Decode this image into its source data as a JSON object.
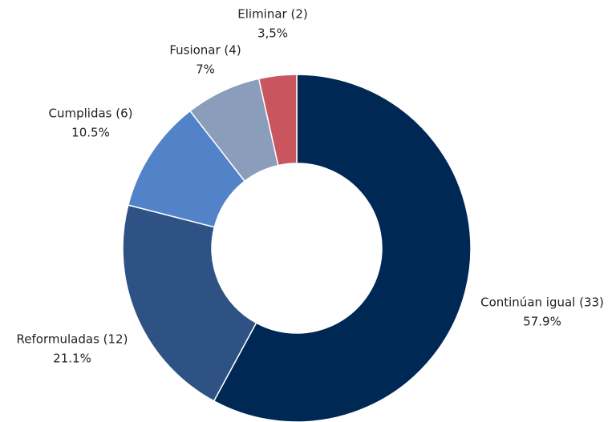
{
  "chart_data": {
    "type": "donut",
    "categories": [
      "Continúan igual (33)",
      "Reformuladas (12)",
      "Cumplidas (6)",
      "Fusionar (4)",
      "Eliminar (2)"
    ],
    "values": [
      57.9,
      21.1,
      10.5,
      7,
      3.5
    ],
    "value_labels": [
      "57.9%",
      "21.1%",
      "10.5%",
      "7%",
      "3,5%"
    ],
    "colors": [
      "#002855",
      "#2e5283",
      "#5283c9",
      "#8a9dbb",
      "#c9555e"
    ]
  }
}
